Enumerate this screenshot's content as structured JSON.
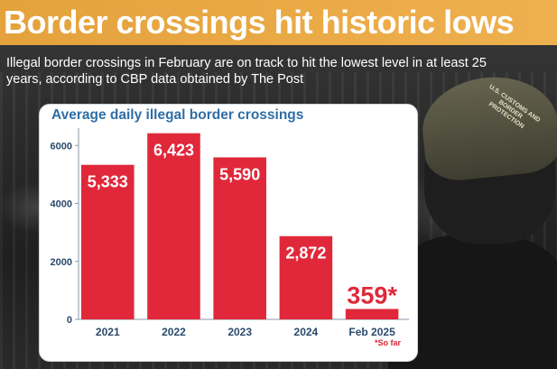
{
  "header": {
    "title": "Border crossings hit historic lows",
    "subtitle": "Illegal border crossings in February are on track to hit the lowest level in at least 25 years, according to CBP data obtained by The Post"
  },
  "photo": {
    "cap_text": "U.S. CUSTOMS AND BORDER PROTECTION"
  },
  "colors": {
    "bar": "#e0283a",
    "title": "#2f6ea5",
    "header_bg": "#e9a846",
    "axis_text": "#2a4a6b"
  },
  "chart_data": {
    "type": "bar",
    "title": "Average daily illegal border crossings",
    "categories": [
      "2021",
      "2022",
      "2023",
      "2024",
      "Feb 2025"
    ],
    "values": [
      5333,
      6423,
      5590,
      2872,
      359
    ],
    "data_labels": [
      "5,333",
      "6,423",
      "5,590",
      "2,872",
      "359*"
    ],
    "yticks": [
      0,
      2000,
      4000,
      6000
    ],
    "ytick_labels": [
      "0",
      "2000",
      "4000",
      "6000"
    ],
    "ylim": [
      0,
      6600
    ],
    "xlabel": "",
    "ylabel": "",
    "grid": false,
    "footnote": "*So far"
  }
}
